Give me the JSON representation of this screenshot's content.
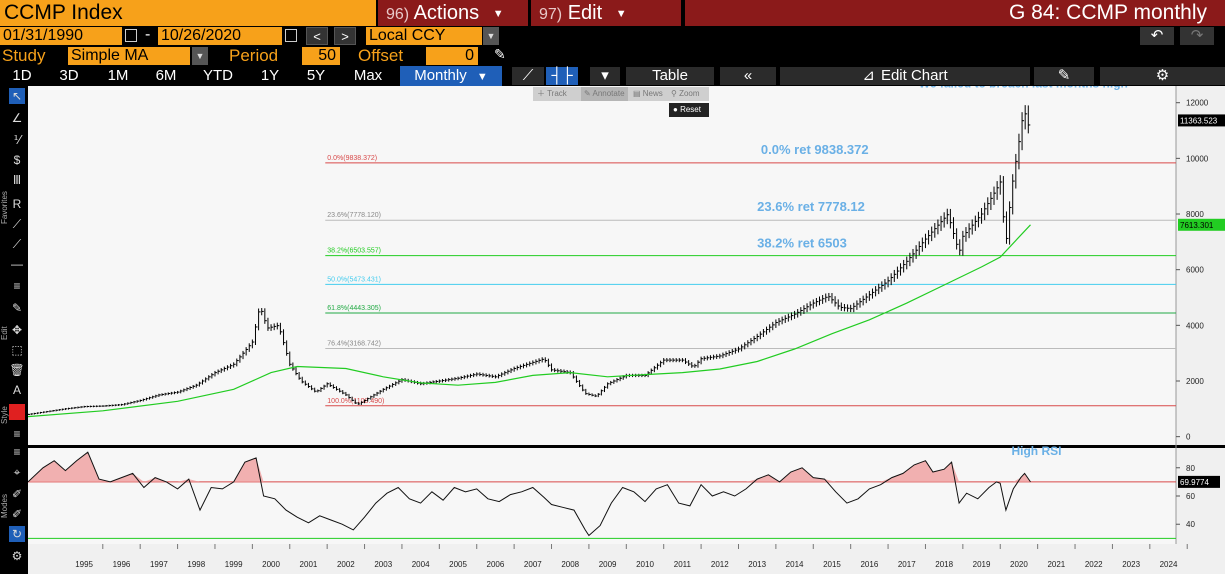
{
  "header": {
    "ticker": "CCMP Index",
    "actions_num": "96)",
    "actions_label": "Actions",
    "edit_num": "97)",
    "edit_label": "Edit",
    "chart_title": "G 84: CCMP monthly"
  },
  "range": {
    "start": "01/31/1990",
    "end": "10/26/2020",
    "currency": "Local CCY"
  },
  "study": {
    "label": "Study",
    "value": "Simple MA",
    "period_label": "Period",
    "period": "50",
    "offset_label": "Offset",
    "offset": "0"
  },
  "periods": [
    "1D",
    "3D",
    "1M",
    "6M",
    "YTD",
    "1Y",
    "5Y",
    "Max"
  ],
  "frequency": "Monthly",
  "toolbar": {
    "table_label": "Table",
    "edit_chart_label": "Edit Chart"
  },
  "mini_toolbar": {
    "track": "Track",
    "annotate": "Annotate",
    "news": "News",
    "zoom": "Zoom",
    "reset": "Reset"
  },
  "side_labels": {
    "favorites": "Favorites",
    "edit": "Edit",
    "style": "Style",
    "modes": "Modes"
  },
  "colors": {
    "background": "#f7f7f7",
    "price": "#000000",
    "ma": "#22cc22",
    "fib_0": "#d84a4a",
    "fib_236": "#bbbbbb",
    "fib_382": "#22cc22",
    "fib_50": "#44ccee",
    "fib_618": "#22aa44",
    "fib_764": "#bbbbbb",
    "fib_100": "#d84a4a",
    "annotation": "#6ab0e6",
    "rsi_fill": "#f0a3a3",
    "accent_orange": "#f7a11a",
    "accent_red": "#8b1a1a"
  },
  "chart_data": {
    "type": "line",
    "title": "",
    "ylim": [
      -300,
      12600
    ],
    "yticks": [
      0,
      2000,
      4000,
      6000,
      8000,
      10000,
      12000
    ],
    "x_years": [
      "1995",
      "1996",
      "1997",
      "1998",
      "1999",
      "2000",
      "2001",
      "2002",
      "2003",
      "2004",
      "2005",
      "2006",
      "2007",
      "2008",
      "2009",
      "2010",
      "2011",
      "2012",
      "2013",
      "2014",
      "2015",
      "2016",
      "2017",
      "2018",
      "2019",
      "2020",
      "2021",
      "2022",
      "2023",
      "2024"
    ],
    "price_label": "11363.523",
    "ma_label": "7613.301",
    "series": [
      {
        "name": "",
        "points": [
          [
            1994.0,
            800
          ],
          [
            1995.0,
            1000
          ],
          [
            1995.5,
            1080
          ],
          [
            1996.0,
            1100
          ],
          [
            1996.5,
            1150
          ],
          [
            1997.0,
            1300
          ],
          [
            1997.5,
            1500
          ],
          [
            1998.0,
            1600
          ],
          [
            1998.5,
            1850
          ],
          [
            1999.0,
            2300
          ],
          [
            1999.5,
            2600
          ],
          [
            2000.0,
            3400
          ],
          [
            2000.2,
            4700
          ],
          [
            2000.4,
            3900
          ],
          [
            2000.7,
            4000
          ],
          [
            2001.0,
            2600
          ],
          [
            2001.3,
            2000
          ],
          [
            2001.7,
            1600
          ],
          [
            2002.0,
            1900
          ],
          [
            2002.5,
            1500
          ],
          [
            2002.8,
            1150
          ],
          [
            2003.0,
            1300
          ],
          [
            2003.5,
            1700
          ],
          [
            2004.0,
            2050
          ],
          [
            2004.5,
            1900
          ],
          [
            2005.0,
            2000
          ],
          [
            2005.5,
            2100
          ],
          [
            2006.0,
            2250
          ],
          [
            2006.5,
            2150
          ],
          [
            2007.0,
            2450
          ],
          [
            2007.8,
            2800
          ],
          [
            2008.0,
            2400
          ],
          [
            2008.5,
            2300
          ],
          [
            2008.9,
            1550
          ],
          [
            2009.2,
            1450
          ],
          [
            2009.5,
            1900
          ],
          [
            2010.0,
            2200
          ],
          [
            2010.5,
            2200
          ],
          [
            2011.0,
            2750
          ],
          [
            2011.5,
            2750
          ],
          [
            2011.8,
            2500
          ],
          [
            2012.0,
            2800
          ],
          [
            2012.5,
            2900
          ],
          [
            2013.0,
            3150
          ],
          [
            2013.5,
            3600
          ],
          [
            2014.0,
            4100
          ],
          [
            2014.5,
            4400
          ],
          [
            2015.0,
            4800
          ],
          [
            2015.4,
            5050
          ],
          [
            2015.7,
            4650
          ],
          [
            2016.0,
            4600
          ],
          [
            2016.5,
            5100
          ],
          [
            2017.0,
            5600
          ],
          [
            2017.5,
            6300
          ],
          [
            2018.0,
            7100
          ],
          [
            2018.6,
            8000
          ],
          [
            2018.9,
            6600
          ],
          [
            2019.0,
            7200
          ],
          [
            2019.5,
            8000
          ],
          [
            2019.9,
            8900
          ],
          [
            2020.0,
            9150
          ],
          [
            2020.15,
            6900
          ],
          [
            2020.3,
            8900
          ],
          [
            2020.5,
            10600
          ],
          [
            2020.63,
            11775
          ],
          [
            2020.75,
            11200
          ],
          [
            2020.81,
            11363
          ]
        ]
      },
      {
        "name": "",
        "points": [
          [
            1994.0,
            720
          ],
          [
            1996.0,
            930
          ],
          [
            1998.0,
            1270
          ],
          [
            1999.5,
            1700
          ],
          [
            2000.5,
            2300
          ],
          [
            2001.2,
            2520
          ],
          [
            2002.5,
            2450
          ],
          [
            2003.5,
            2150
          ],
          [
            2004.5,
            1930
          ],
          [
            2005.5,
            1850
          ],
          [
            2006.5,
            1950
          ],
          [
            2007.5,
            2200
          ],
          [
            2008.5,
            2300
          ],
          [
            2009.5,
            2150
          ],
          [
            2010.5,
            2230
          ],
          [
            2011.5,
            2300
          ],
          [
            2012.5,
            2430
          ],
          [
            2013.5,
            2700
          ],
          [
            2014.5,
            3150
          ],
          [
            2015.5,
            3700
          ],
          [
            2016.5,
            4200
          ],
          [
            2017.5,
            4800
          ],
          [
            2018.5,
            5450
          ],
          [
            2019.5,
            6100
          ],
          [
            2020.0,
            6450
          ],
          [
            2020.81,
            7613
          ]
        ]
      }
    ],
    "fib_levels": [
      {
        "label": "0.0%(9838.372)",
        "value": 9838.372
      },
      {
        "label": "23.6%(7778.120)",
        "value": 7778.12
      },
      {
        "label": "38.2%(6503.557)",
        "value": 6503.557
      },
      {
        "label": "50.0%(5473.431)",
        "value": 5473.431
      },
      {
        "label": "61.8%(4443.305)",
        "value": 4443.305
      },
      {
        "label": "76.4%(3168.742)",
        "value": 3168.742
      },
      {
        "label": "100.0%(1108.490)",
        "value": 1108.49
      }
    ],
    "annotations": [
      {
        "text": "We failed to breach last months high",
        "x": 2017.82,
        "y": 12550
      },
      {
        "text": "0.0% ret 9838.372",
        "x": 2013.6,
        "y": 10150
      },
      {
        "text": "23.6% ret 7778.12",
        "x": 2013.5,
        "y": 8100
      },
      {
        "text": "38.2% ret 6503",
        "x": 2013.5,
        "y": 6800
      }
    ],
    "rsi": {
      "ylim": [
        26,
        94
      ],
      "yticks": [
        40,
        60,
        80
      ],
      "upper": 70,
      "lower": 30,
      "value_label": "69.9774",
      "annotation": "High RSI",
      "points": [
        [
          1994.0,
          70
        ],
        [
          1994.4,
          80
        ],
        [
          1994.7,
          85
        ],
        [
          1995.0,
          78
        ],
        [
          1995.3,
          85
        ],
        [
          1995.6,
          91
        ],
        [
          1995.9,
          72
        ],
        [
          1996.2,
          70
        ],
        [
          1996.5,
          73
        ],
        [
          1996.8,
          76
        ],
        [
          1997.1,
          66
        ],
        [
          1997.4,
          73
        ],
        [
          1997.7,
          70
        ],
        [
          1998.0,
          65
        ],
        [
          1998.3,
          72
        ],
        [
          1998.6,
          50
        ],
        [
          1998.9,
          66
        ],
        [
          1999.2,
          65
        ],
        [
          1999.5,
          70
        ],
        [
          1999.8,
          84
        ],
        [
          2000.1,
          87
        ],
        [
          2000.3,
          60
        ],
        [
          2000.6,
          58
        ],
        [
          2000.9,
          50
        ],
        [
          2001.2,
          45
        ],
        [
          2001.5,
          41
        ],
        [
          2001.8,
          46
        ],
        [
          2002.1,
          43
        ],
        [
          2002.4,
          40
        ],
        [
          2002.7,
          36
        ],
        [
          2003.0,
          45
        ],
        [
          2003.3,
          55
        ],
        [
          2003.6,
          62
        ],
        [
          2003.9,
          66
        ],
        [
          2004.2,
          58
        ],
        [
          2004.5,
          55
        ],
        [
          2004.8,
          63
        ],
        [
          2005.1,
          57
        ],
        [
          2005.4,
          66
        ],
        [
          2005.7,
          63
        ],
        [
          2006.0,
          65
        ],
        [
          2006.3,
          58
        ],
        [
          2006.6,
          56
        ],
        [
          2006.9,
          61
        ],
        [
          2007.2,
          63
        ],
        [
          2007.5,
          66
        ],
        [
          2007.8,
          59
        ],
        [
          2008.0,
          54
        ],
        [
          2008.3,
          52
        ],
        [
          2008.6,
          50
        ],
        [
          2008.9,
          36
        ],
        [
          2009.0,
          32
        ],
        [
          2009.3,
          39
        ],
        [
          2009.6,
          55
        ],
        [
          2009.9,
          66
        ],
        [
          2010.2,
          63
        ],
        [
          2010.5,
          56
        ],
        [
          2010.8,
          65
        ],
        [
          2011.1,
          68
        ],
        [
          2011.4,
          55
        ],
        [
          2011.7,
          53
        ],
        [
          2012.0,
          68
        ],
        [
          2012.3,
          60
        ],
        [
          2012.6,
          63
        ],
        [
          2012.9,
          60
        ],
        [
          2013.2,
          65
        ],
        [
          2013.5,
          72
        ],
        [
          2013.8,
          75
        ],
        [
          2014.1,
          70
        ],
        [
          2014.4,
          77
        ],
        [
          2014.7,
          80
        ],
        [
          2015.0,
          73
        ],
        [
          2015.3,
          72
        ],
        [
          2015.6,
          63
        ],
        [
          2015.9,
          55
        ],
        [
          2016.2,
          58
        ],
        [
          2016.5,
          65
        ],
        [
          2016.8,
          68
        ],
        [
          2017.1,
          73
        ],
        [
          2017.4,
          76
        ],
        [
          2017.7,
          82
        ],
        [
          2018.0,
          85
        ],
        [
          2018.2,
          77
        ],
        [
          2018.5,
          79
        ],
        [
          2018.7,
          84
        ],
        [
          2018.9,
          55
        ],
        [
          2019.1,
          62
        ],
        [
          2019.4,
          58
        ],
        [
          2019.7,
          66
        ],
        [
          2019.9,
          70
        ],
        [
          2020.0,
          69
        ],
        [
          2020.15,
          50
        ],
        [
          2020.35,
          65
        ],
        [
          2020.55,
          73
        ],
        [
          2020.65,
          76
        ],
        [
          2020.81,
          70
        ]
      ]
    }
  }
}
